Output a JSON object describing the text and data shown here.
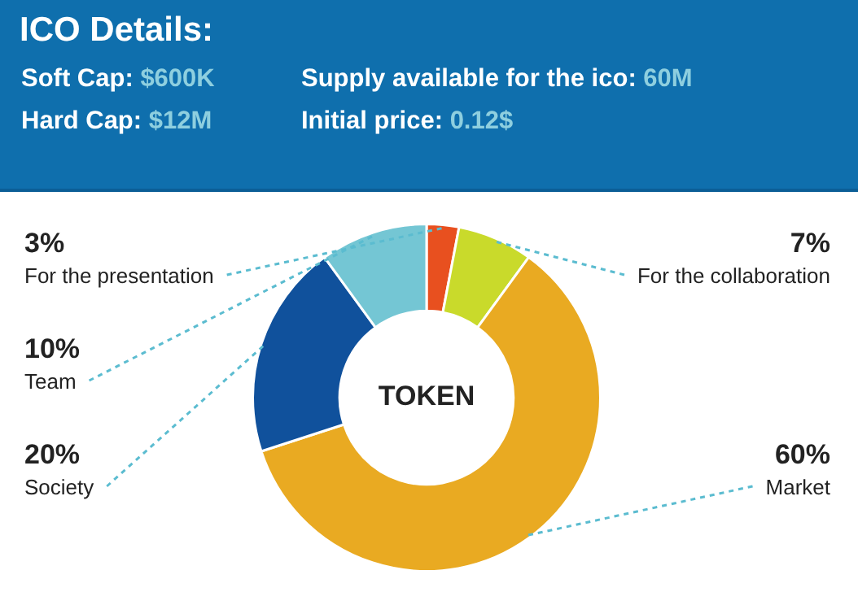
{
  "chart_data": [
    {
      "type": "other",
      "title": "ICO Details:",
      "annotations": [
        "Soft Cap: $600K",
        "Supply available for the ico: 60M",
        "Hard Cap: $12M",
        "Initial price: 0.12$"
      ]
    },
    {
      "type": "donut",
      "categories": [
        "For the presentation",
        "For the collaboration",
        "Market",
        "Society",
        "Team"
      ],
      "values": [
        3,
        7,
        60,
        20,
        10
      ],
      "colors": [
        "#e8501f",
        "#c9da2b",
        "#e9aa22",
        "#10519c",
        "#74c6d4"
      ],
      "value_labels": [
        "3%",
        "7%",
        "60%",
        "20%",
        "10%"
      ],
      "legend": false,
      "annotations": [
        "TOKEN"
      ]
    }
  ]
}
